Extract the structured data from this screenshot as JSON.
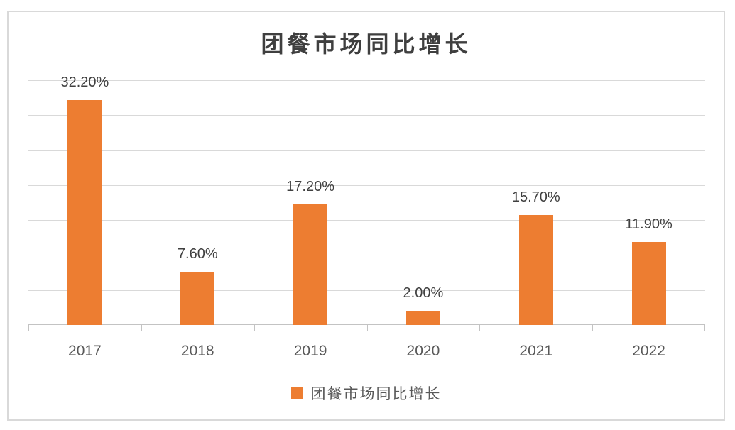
{
  "chart_data": {
    "type": "bar",
    "title": "团餐市场同比增长",
    "categories": [
      "2017",
      "2018",
      "2019",
      "2020",
      "2021",
      "2022"
    ],
    "values": [
      32.2,
      7.6,
      17.2,
      2.0,
      15.7,
      11.9
    ],
    "data_labels": [
      "32.20%",
      "7.60%",
      "17.20%",
      "2.00%",
      "15.70%",
      "11.90%"
    ],
    "xlabel": "",
    "ylabel": "",
    "ylim": [
      0,
      35
    ],
    "gridline_step": 5,
    "grid": true,
    "y_tick_labels_visible": false,
    "bar_color": "#ED7D31",
    "legend": {
      "label": "团餐市场同比增长",
      "swatch_color": "#ED7D31",
      "position": "bottom"
    }
  },
  "colors": {
    "bar": "#ED7D31",
    "title_text": "#3F3F3F",
    "data_label_text": "#404040",
    "axis_label_text": "#595959",
    "gridline": "#D9D9D9",
    "axis_line": "#C3C3C3",
    "frame_border": "#D9D9D9",
    "background": "#FFFFFF"
  }
}
